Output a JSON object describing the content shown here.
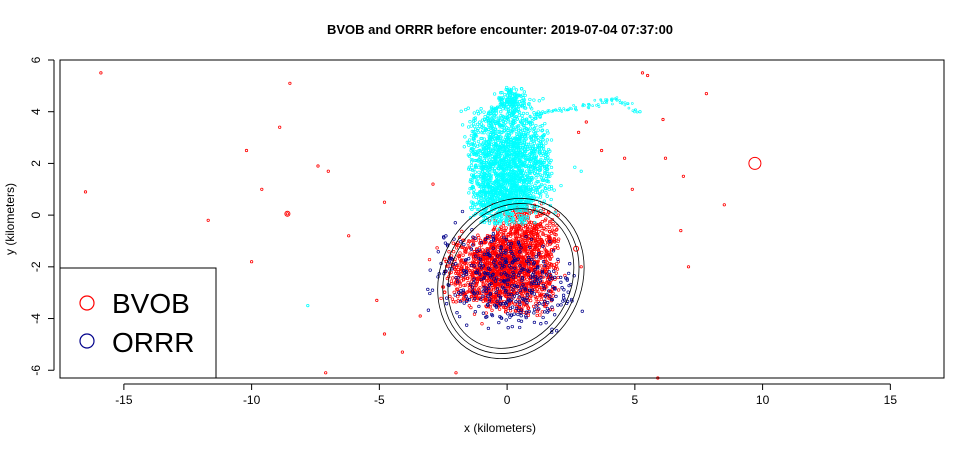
{
  "chart_data": {
    "type": "scatter",
    "title": "BVOB and ORRR before encounter: 2019-07-04 07:37:00",
    "xlabel": "x (kilometers)",
    "ylabel": "y (kilometers)",
    "xlim": [
      -17.5,
      17.1
    ],
    "ylim": [
      -6.3,
      6.0
    ],
    "x_ticks": [
      -15,
      -10,
      -5,
      0,
      5,
      10,
      15
    ],
    "y_ticks": [
      -6,
      -4,
      -2,
      0,
      2,
      4,
      6
    ],
    "grid": false,
    "legend_position": "bottom-left",
    "series": [
      {
        "name": "BVOB",
        "color": "#ff0000",
        "marker": "open-circle",
        "clusters": [
          {
            "cx": -0.2,
            "cy": -2.3,
            "rx": 2.0,
            "ry": 1.3,
            "angle": -10,
            "count": 1400
          },
          {
            "cx": 0.7,
            "cy": -0.8,
            "rx": 1.2,
            "ry": 1.2,
            "angle": 0,
            "count": 500
          }
        ],
        "points": [
          [
            -15.9,
            5.5
          ],
          [
            -16.5,
            0.9
          ],
          [
            -8.6,
            0.05
          ],
          [
            -8.5,
            5.1
          ],
          [
            -9.6,
            1.0
          ],
          [
            -7.4,
            1.9
          ],
          [
            -7.0,
            1.7
          ],
          [
            -10.2,
            2.5
          ],
          [
            -8.9,
            3.4
          ],
          [
            -11.7,
            -0.2
          ],
          [
            -10.0,
            -1.8
          ],
          [
            -7.1,
            -6.1
          ],
          [
            -4.1,
            -5.3
          ],
          [
            -4.8,
            -4.6
          ],
          [
            -5.1,
            -3.3
          ],
          [
            -6.2,
            -0.8
          ],
          [
            -4.8,
            0.5
          ],
          [
            -2.9,
            1.2
          ],
          [
            -3.4,
            -3.9
          ],
          [
            -2.0,
            -6.1
          ],
          [
            2.8,
            3.2
          ],
          [
            3.7,
            2.5
          ],
          [
            4.6,
            2.2
          ],
          [
            5.3,
            5.5
          ],
          [
            5.5,
            5.4
          ],
          [
            6.1,
            3.7
          ],
          [
            6.2,
            2.2
          ],
          [
            6.9,
            1.5
          ],
          [
            7.1,
            -2.0
          ],
          [
            7.8,
            4.7
          ],
          [
            8.5,
            0.4
          ],
          [
            6.8,
            -0.6
          ],
          [
            4.9,
            1.0
          ],
          [
            5.9,
            -6.3
          ],
          [
            3.1,
            3.6
          ],
          [
            2.9,
            -2.0
          ]
        ],
        "large_points": [
          {
            "x": 9.7,
            "y": 2.0
          },
          {
            "x": 2.7,
            "y": -1.3
          },
          {
            "x": -8.6,
            "y": 0.05
          }
        ]
      },
      {
        "name": "ORRR",
        "color": "#00008b",
        "marker": "open-circle",
        "clusters": [
          {
            "cx": -0.2,
            "cy": -2.5,
            "rx": 2.6,
            "ry": 1.7,
            "angle": -10,
            "count": 400
          }
        ],
        "points": []
      },
      {
        "name": "",
        "color": "#00ffff",
        "marker": "open-circle",
        "clusters": [
          {
            "cx": 0.1,
            "cy": 2.2,
            "rx": 1.5,
            "ry": 2.0,
            "angle": 8,
            "count": 1600
          },
          {
            "cx": -0.2,
            "cy": 0.6,
            "rx": 1.2,
            "ry": 0.9,
            "angle": 0,
            "count": 500
          },
          {
            "cx": 0.2,
            "cy": 4.5,
            "rx": 0.5,
            "ry": 0.4,
            "angle": 0,
            "count": 120
          }
        ],
        "trail": [
          [
            0.6,
            3.6
          ],
          [
            1.5,
            4.0
          ],
          [
            2.5,
            4.1
          ],
          [
            3.5,
            4.3
          ],
          [
            4.3,
            4.5
          ],
          [
            5.1,
            4.0
          ]
        ],
        "points": [
          [
            2.9,
            1.7
          ],
          [
            5.2,
            4.0
          ],
          [
            -7.8,
            -3.5
          ]
        ]
      }
    ],
    "contours": [
      {
        "color": "#000000",
        "cx": 0.15,
        "cy": -2.45,
        "rx": 2.75,
        "ry": 3.2,
        "angle": 28
      },
      {
        "color": "#000000",
        "cx": 0.15,
        "cy": -2.45,
        "rx": 2.55,
        "ry": 3.0,
        "angle": 28
      },
      {
        "color": "#000000",
        "cx": 0.15,
        "cy": -2.45,
        "rx": 2.35,
        "ry": 2.8,
        "angle": 28
      }
    ]
  }
}
